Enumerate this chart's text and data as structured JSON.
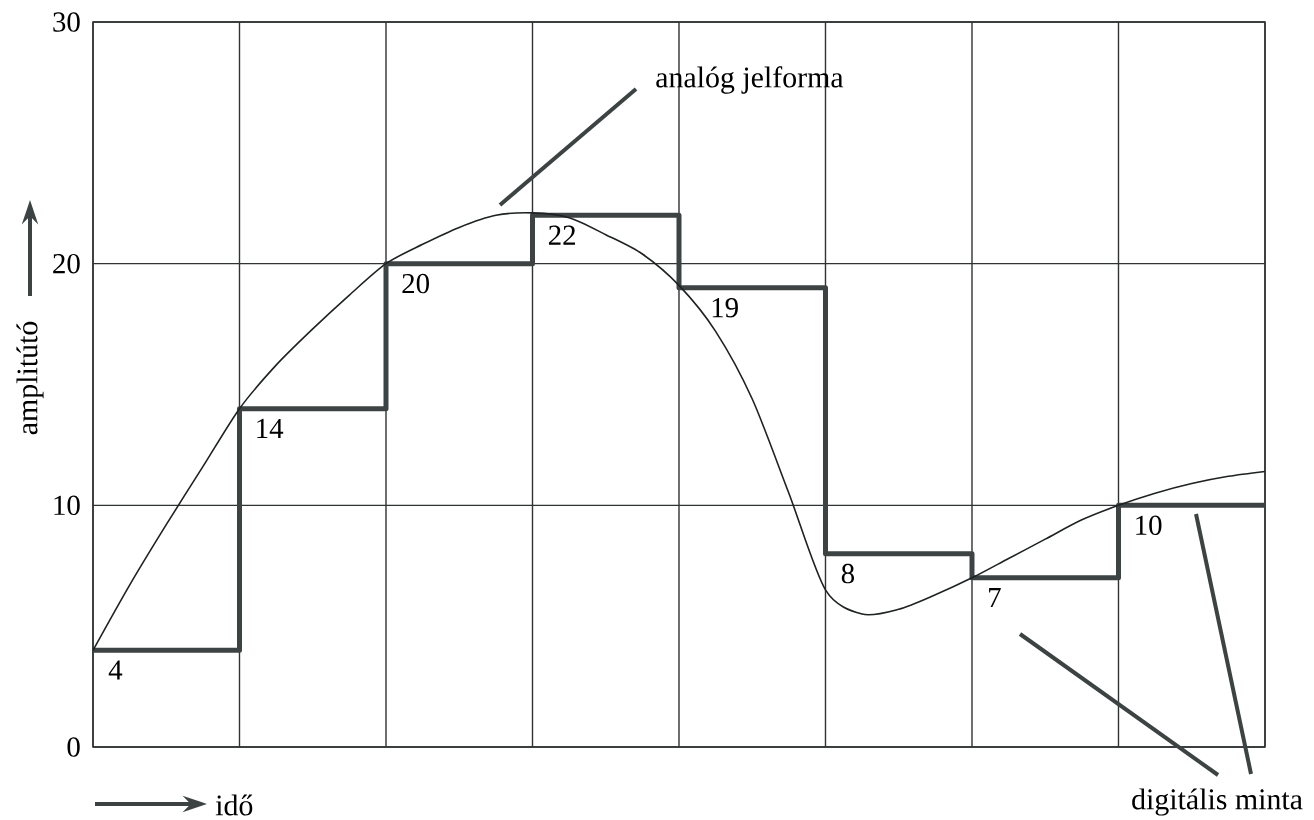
{
  "chart_data": {
    "type": "step",
    "xlabel": "idő",
    "ylabel": "amplitútó",
    "annotations": [
      "analóg jelforma",
      "digitális minta"
    ],
    "categories": [
      null,
      null,
      null,
      null,
      null,
      null,
      null,
      null,
      null,
      null,
      null,
      null,
      null,
      null,
      null,
      null,
      null,
      null,
      null,
      null,
      null,
      null,
      null,
      null,
      null,
      null,
      null,
      null,
      null,
      null,
      null,
      null,
      null
    ],
    "ylim": [
      0,
      30
    ],
    "yticks": [
      0,
      10,
      20,
      30
    ],
    "grid": true,
    "series": [
      {
        "color": "#3d4343",
        "values": [
          4,
          4,
          4,
          4,
          14,
          14,
          14,
          14,
          20,
          20,
          20,
          20,
          22,
          22,
          22,
          22,
          19,
          19,
          19,
          19,
          8,
          8,
          8,
          8,
          7,
          7,
          7,
          7,
          10,
          10,
          10,
          10,
          10
        ],
        "value_labels": [
          "4",
          null,
          null,
          null,
          "14",
          null,
          null,
          null,
          "20",
          null,
          null,
          null,
          "22",
          null,
          null,
          null,
          "19",
          null,
          null,
          null,
          "8",
          null,
          null,
          null,
          "7",
          null,
          null,
          null,
          "10",
          null,
          null,
          null,
          null
        ]
      },
      {
        "type": "line",
        "color": "#1e2222",
        "values": [
          4,
          6.7,
          9.2,
          11.6,
          14,
          15.8,
          17.3,
          18.7,
          20,
          20.8,
          21.5,
          22.0,
          22.1,
          21.9,
          21.2,
          20.4,
          19.1,
          17.2,
          14.4,
          10.5,
          6.5,
          5.5,
          5.7,
          6.3,
          7.0,
          7.8,
          8.6,
          9.4,
          10.0,
          10.5,
          10.9,
          11.2,
          11.4
        ]
      }
    ]
  }
}
